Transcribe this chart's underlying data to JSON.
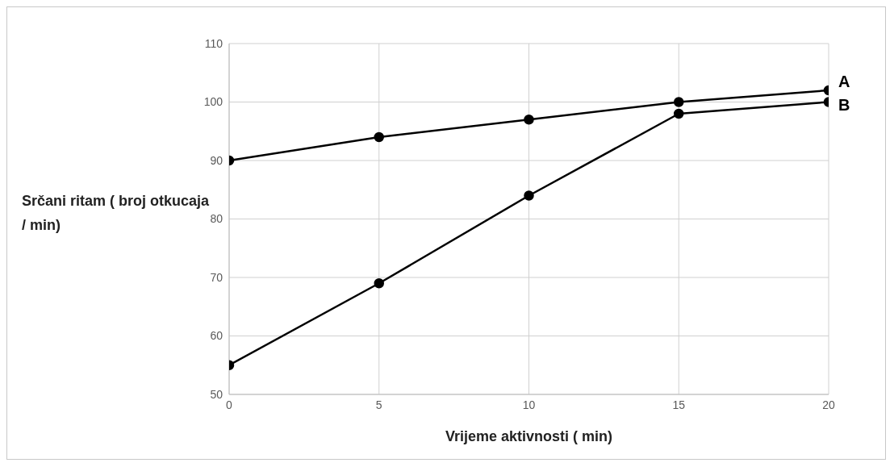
{
  "chart_data": {
    "type": "line",
    "xlabel": "Vrijeme aktivnosti ( min)",
    "ylabel": "Srčani ritam ( broj otkucaja / min)",
    "x": [
      0,
      5,
      10,
      15,
      20
    ],
    "series": [
      {
        "name": "A",
        "color": "#000000",
        "values": [
          90,
          94,
          97,
          100,
          102
        ]
      },
      {
        "name": "B",
        "color": "#000000",
        "values": [
          55,
          69,
          84,
          98,
          100
        ]
      }
    ],
    "xlim": [
      0,
      20
    ],
    "xticks": [
      0,
      5,
      10,
      15,
      20
    ],
    "ylim": [
      50,
      110
    ],
    "yticks": [
      50,
      60,
      70,
      80,
      90,
      100,
      110
    ],
    "grid": true,
    "marker": "circle",
    "line_style": "solid"
  }
}
